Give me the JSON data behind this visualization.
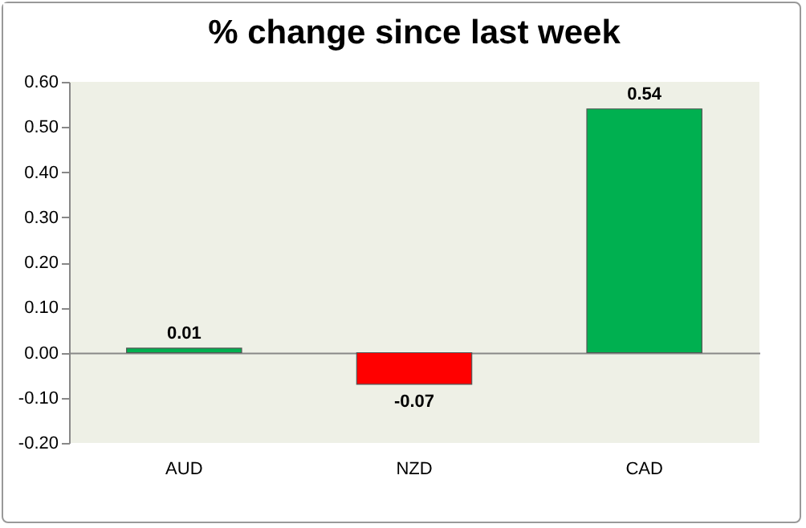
{
  "chart_data": {
    "type": "bar",
    "title": "% change since last week",
    "categories": [
      "AUD",
      "NZD",
      "CAD"
    ],
    "values": [
      0.01,
      -0.07,
      0.54
    ],
    "colors": [
      "#00b050",
      "#ff0000",
      "#00b050"
    ],
    "ylim": [
      -0.2,
      0.6
    ],
    "yticks": [
      {
        "value": -0.2,
        "label": "-0.20"
      },
      {
        "value": -0.1,
        "label": "-0.10"
      },
      {
        "value": 0,
        "label": "0.00"
      },
      {
        "value": 0.1,
        "label": "0.10"
      },
      {
        "value": 0.2,
        "label": "0.20"
      },
      {
        "value": 0.3,
        "label": "0.30"
      },
      {
        "value": 0.4,
        "label": "0.40"
      },
      {
        "value": 0.5,
        "label": "0.50"
      },
      {
        "value": 0.6,
        "label": "0.60"
      }
    ],
    "data_labels": true
  }
}
